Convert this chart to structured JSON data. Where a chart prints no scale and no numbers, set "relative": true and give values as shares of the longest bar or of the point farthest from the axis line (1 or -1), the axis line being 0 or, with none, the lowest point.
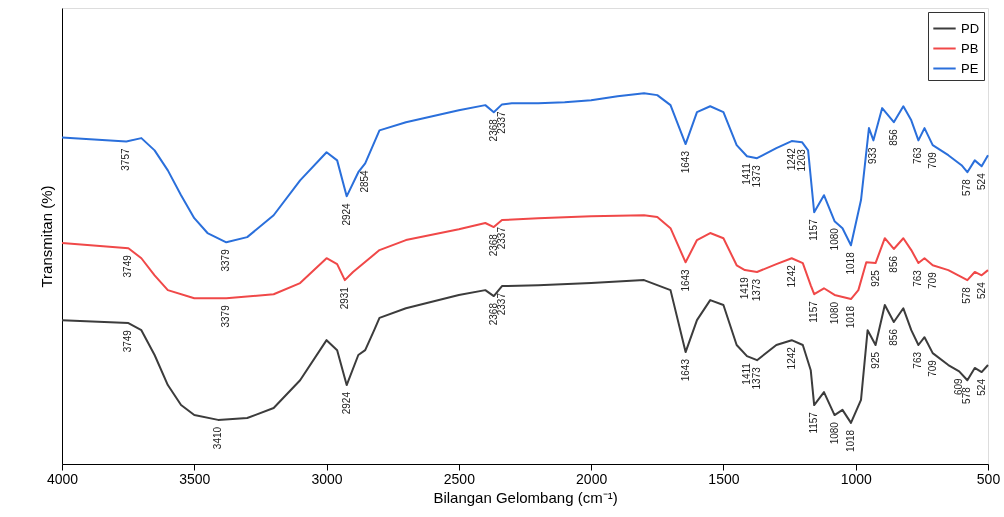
{
  "chart_data": {
    "type": "line",
    "xlabel": "Bilangan Gelombang (cm⁻¹)",
    "ylabel": "Transmitan (%)",
    "relative": true,
    "xlim": [
      4000,
      500
    ],
    "xticks": [
      4000,
      3500,
      3000,
      2500,
      2000,
      1500,
      1000,
      500
    ],
    "legend": "top right",
    "grid": false,
    "line_style": "solid",
    "marker": "none",
    "series": [
      {
        "name": "PD",
        "color": "#3c3c3c",
        "x": [
          4000,
          3749,
          3700,
          3650,
          3600,
          3550,
          3500,
          3410,
          3300,
          3200,
          3100,
          3000,
          2960,
          2924,
          2880,
          2854,
          2820,
          2800,
          2700,
          2500,
          2400,
          2368,
          2337,
          2200,
          2000,
          1800,
          1700,
          1643,
          1600,
          1550,
          1500,
          1450,
          1411,
          1373,
          1300,
          1242,
          1200,
          1170,
          1157,
          1120,
          1080,
          1050,
          1018,
          980,
          955,
          925,
          890,
          856,
          820,
          790,
          763,
          740,
          709,
          650,
          609,
          578,
          550,
          524,
          500
        ],
        "values": [
          0.388,
          0.38,
          0.361,
          0.294,
          0.213,
          0.159,
          0.132,
          0.119,
          0.124,
          0.151,
          0.226,
          0.334,
          0.307,
          0.213,
          0.294,
          0.307,
          0.361,
          0.394,
          0.42,
          0.456,
          0.469,
          0.453,
          0.48,
          0.482,
          0.488,
          0.496,
          0.469,
          0.302,
          0.388,
          0.442,
          0.429,
          0.321,
          0.291,
          0.28,
          0.321,
          0.334,
          0.321,
          0.253,
          0.159,
          0.194,
          0.132,
          0.146,
          0.111,
          0.173,
          0.361,
          0.321,
          0.429,
          0.383,
          0.42,
          0.361,
          0.321,
          0.342,
          0.299,
          0.267,
          0.25,
          0.226,
          0.259,
          0.248,
          0.267
        ]
      },
      {
        "name": "PB",
        "color": "#f04848",
        "x": [
          4000,
          3749,
          3700,
          3650,
          3600,
          3500,
          3379,
          3200,
          3100,
          3000,
          2960,
          2931,
          2900,
          2800,
          2700,
          2500,
          2400,
          2368,
          2337,
          2200,
          2000,
          1800,
          1750,
          1700,
          1643,
          1600,
          1550,
          1500,
          1450,
          1419,
          1373,
          1300,
          1242,
          1200,
          1170,
          1157,
          1120,
          1080,
          1018,
          990,
          960,
          925,
          890,
          856,
          820,
          790,
          763,
          740,
          709,
          650,
          578,
          550,
          524,
          500
        ],
        "values": [
          0.596,
          0.582,
          0.555,
          0.509,
          0.469,
          0.447,
          0.447,
          0.458,
          0.488,
          0.555,
          0.539,
          0.496,
          0.518,
          0.577,
          0.604,
          0.633,
          0.65,
          0.639,
          0.658,
          0.663,
          0.668,
          0.671,
          0.666,
          0.636,
          0.544,
          0.604,
          0.623,
          0.609,
          0.536,
          0.523,
          0.518,
          0.539,
          0.555,
          0.542,
          0.482,
          0.458,
          0.474,
          0.456,
          0.445,
          0.469,
          0.544,
          0.542,
          0.609,
          0.58,
          0.609,
          0.577,
          0.542,
          0.555,
          0.536,
          0.523,
          0.496,
          0.518,
          0.509,
          0.523
        ]
      },
      {
        "name": "PE",
        "color": "#2a6fdb",
        "x": [
          4000,
          3757,
          3700,
          3650,
          3600,
          3550,
          3500,
          3450,
          3379,
          3300,
          3200,
          3100,
          3000,
          2960,
          2924,
          2880,
          2854,
          2800,
          2700,
          2600,
          2500,
          2400,
          2368,
          2337,
          2300,
          2200,
          2100,
          2000,
          1900,
          1800,
          1750,
          1700,
          1643,
          1600,
          1550,
          1500,
          1450,
          1411,
          1373,
          1300,
          1242,
          1203,
          1180,
          1157,
          1120,
          1080,
          1050,
          1018,
          980,
          950,
          933,
          900,
          856,
          820,
          790,
          763,
          740,
          709,
          650,
          600,
          578,
          550,
          524,
          500
        ],
        "values": [
          0.881,
          0.87,
          0.879,
          0.846,
          0.792,
          0.725,
          0.663,
          0.623,
          0.598,
          0.612,
          0.671,
          0.765,
          0.841,
          0.819,
          0.722,
          0.787,
          0.811,
          0.9,
          0.922,
          0.938,
          0.954,
          0.968,
          0.949,
          0.97,
          0.973,
          0.973,
          0.976,
          0.981,
          0.992,
          1.0,
          0.995,
          0.968,
          0.863,
          0.949,
          0.965,
          0.949,
          0.86,
          0.83,
          0.825,
          0.852,
          0.871,
          0.868,
          0.846,
          0.679,
          0.725,
          0.655,
          0.636,
          0.59,
          0.712,
          0.906,
          0.873,
          0.96,
          0.922,
          0.965,
          0.927,
          0.873,
          0.906,
          0.86,
          0.833,
          0.806,
          0.787,
          0.819,
          0.803,
          0.833
        ]
      }
    ],
    "annotations": [
      {
        "text": "3757",
        "x": 3757,
        "y": 0.87
      },
      {
        "text": "3379",
        "x": 3379,
        "y": 0.598
      },
      {
        "text": "2924",
        "x": 2924,
        "y": 0.722
      },
      {
        "text": "2854",
        "x": 2854,
        "y": 0.811
      },
      {
        "text": "2368",
        "x": 2368,
        "y": 0.949
      },
      {
        "text": "2337",
        "x": 2337,
        "y": 0.97
      },
      {
        "text": "1643",
        "x": 1643,
        "y": 0.863
      },
      {
        "text": "1411",
        "x": 1411,
        "y": 0.83
      },
      {
        "text": "1373",
        "x": 1373,
        "y": 0.825
      },
      {
        "text": "1242",
        "x": 1242,
        "y": 0.871
      },
      {
        "text": "1203",
        "x": 1203,
        "y": 0.868
      },
      {
        "text": "1157",
        "x": 1157,
        "y": 0.679
      },
      {
        "text": "1080",
        "x": 1080,
        "y": 0.655
      },
      {
        "text": "1018",
        "x": 1018,
        "y": 0.59
      },
      {
        "text": "933",
        "x": 933,
        "y": 0.873
      },
      {
        "text": "856",
        "x": 856,
        "y": 0.922
      },
      {
        "text": "763",
        "x": 763,
        "y": 0.873
      },
      {
        "text": "709",
        "x": 709,
        "y": 0.86
      },
      {
        "text": "578",
        "x": 578,
        "y": 0.787
      },
      {
        "text": "524",
        "x": 524,
        "y": 0.803
      },
      {
        "text": "3749",
        "x": 3749,
        "y": 0.582
      },
      {
        "text": "3379",
        "x": 3379,
        "y": 0.447
      },
      {
        "text": "2931",
        "x": 2931,
        "y": 0.496
      },
      {
        "text": "2368",
        "x": 2368,
        "y": 0.639
      },
      {
        "text": "2337",
        "x": 2337,
        "y": 0.658
      },
      {
        "text": "1643",
        "x": 1643,
        "y": 0.544
      },
      {
        "text": "1419",
        "x": 1419,
        "y": 0.523
      },
      {
        "text": "1373",
        "x": 1373,
        "y": 0.518
      },
      {
        "text": "1242",
        "x": 1242,
        "y": 0.555
      },
      {
        "text": "1157",
        "x": 1157,
        "y": 0.458
      },
      {
        "text": "1080",
        "x": 1080,
        "y": 0.456
      },
      {
        "text": "1018",
        "x": 1018,
        "y": 0.445
      },
      {
        "text": "925",
        "x": 925,
        "y": 0.542
      },
      {
        "text": "856",
        "x": 856,
        "y": 0.58
      },
      {
        "text": "763",
        "x": 763,
        "y": 0.542
      },
      {
        "text": "709",
        "x": 709,
        "y": 0.536
      },
      {
        "text": "578",
        "x": 578,
        "y": 0.496
      },
      {
        "text": "524",
        "x": 524,
        "y": 0.509
      },
      {
        "text": "3749",
        "x": 3749,
        "y": 0.38
      },
      {
        "text": "3410",
        "x": 3410,
        "y": 0.119
      },
      {
        "text": "2924",
        "x": 2924,
        "y": 0.213
      },
      {
        "text": "2368",
        "x": 2368,
        "y": 0.453
      },
      {
        "text": "2337",
        "x": 2337,
        "y": 0.48
      },
      {
        "text": "1643",
        "x": 1643,
        "y": 0.302
      },
      {
        "text": "1411",
        "x": 1411,
        "y": 0.291
      },
      {
        "text": "1373",
        "x": 1373,
        "y": 0.28
      },
      {
        "text": "1242",
        "x": 1242,
        "y": 0.334
      },
      {
        "text": "1157",
        "x": 1157,
        "y": 0.159
      },
      {
        "text": "1080",
        "x": 1080,
        "y": 0.132
      },
      {
        "text": "1018",
        "x": 1018,
        "y": 0.111
      },
      {
        "text": "925",
        "x": 925,
        "y": 0.321
      },
      {
        "text": "856",
        "x": 856,
        "y": 0.383
      },
      {
        "text": "763",
        "x": 763,
        "y": 0.321
      },
      {
        "text": "709",
        "x": 709,
        "y": 0.299
      },
      {
        "text": "609",
        "x": 609,
        "y": 0.25
      },
      {
        "text": "578",
        "x": 578,
        "y": 0.226
      },
      {
        "text": "524",
        "x": 524,
        "y": 0.248
      }
    ]
  }
}
